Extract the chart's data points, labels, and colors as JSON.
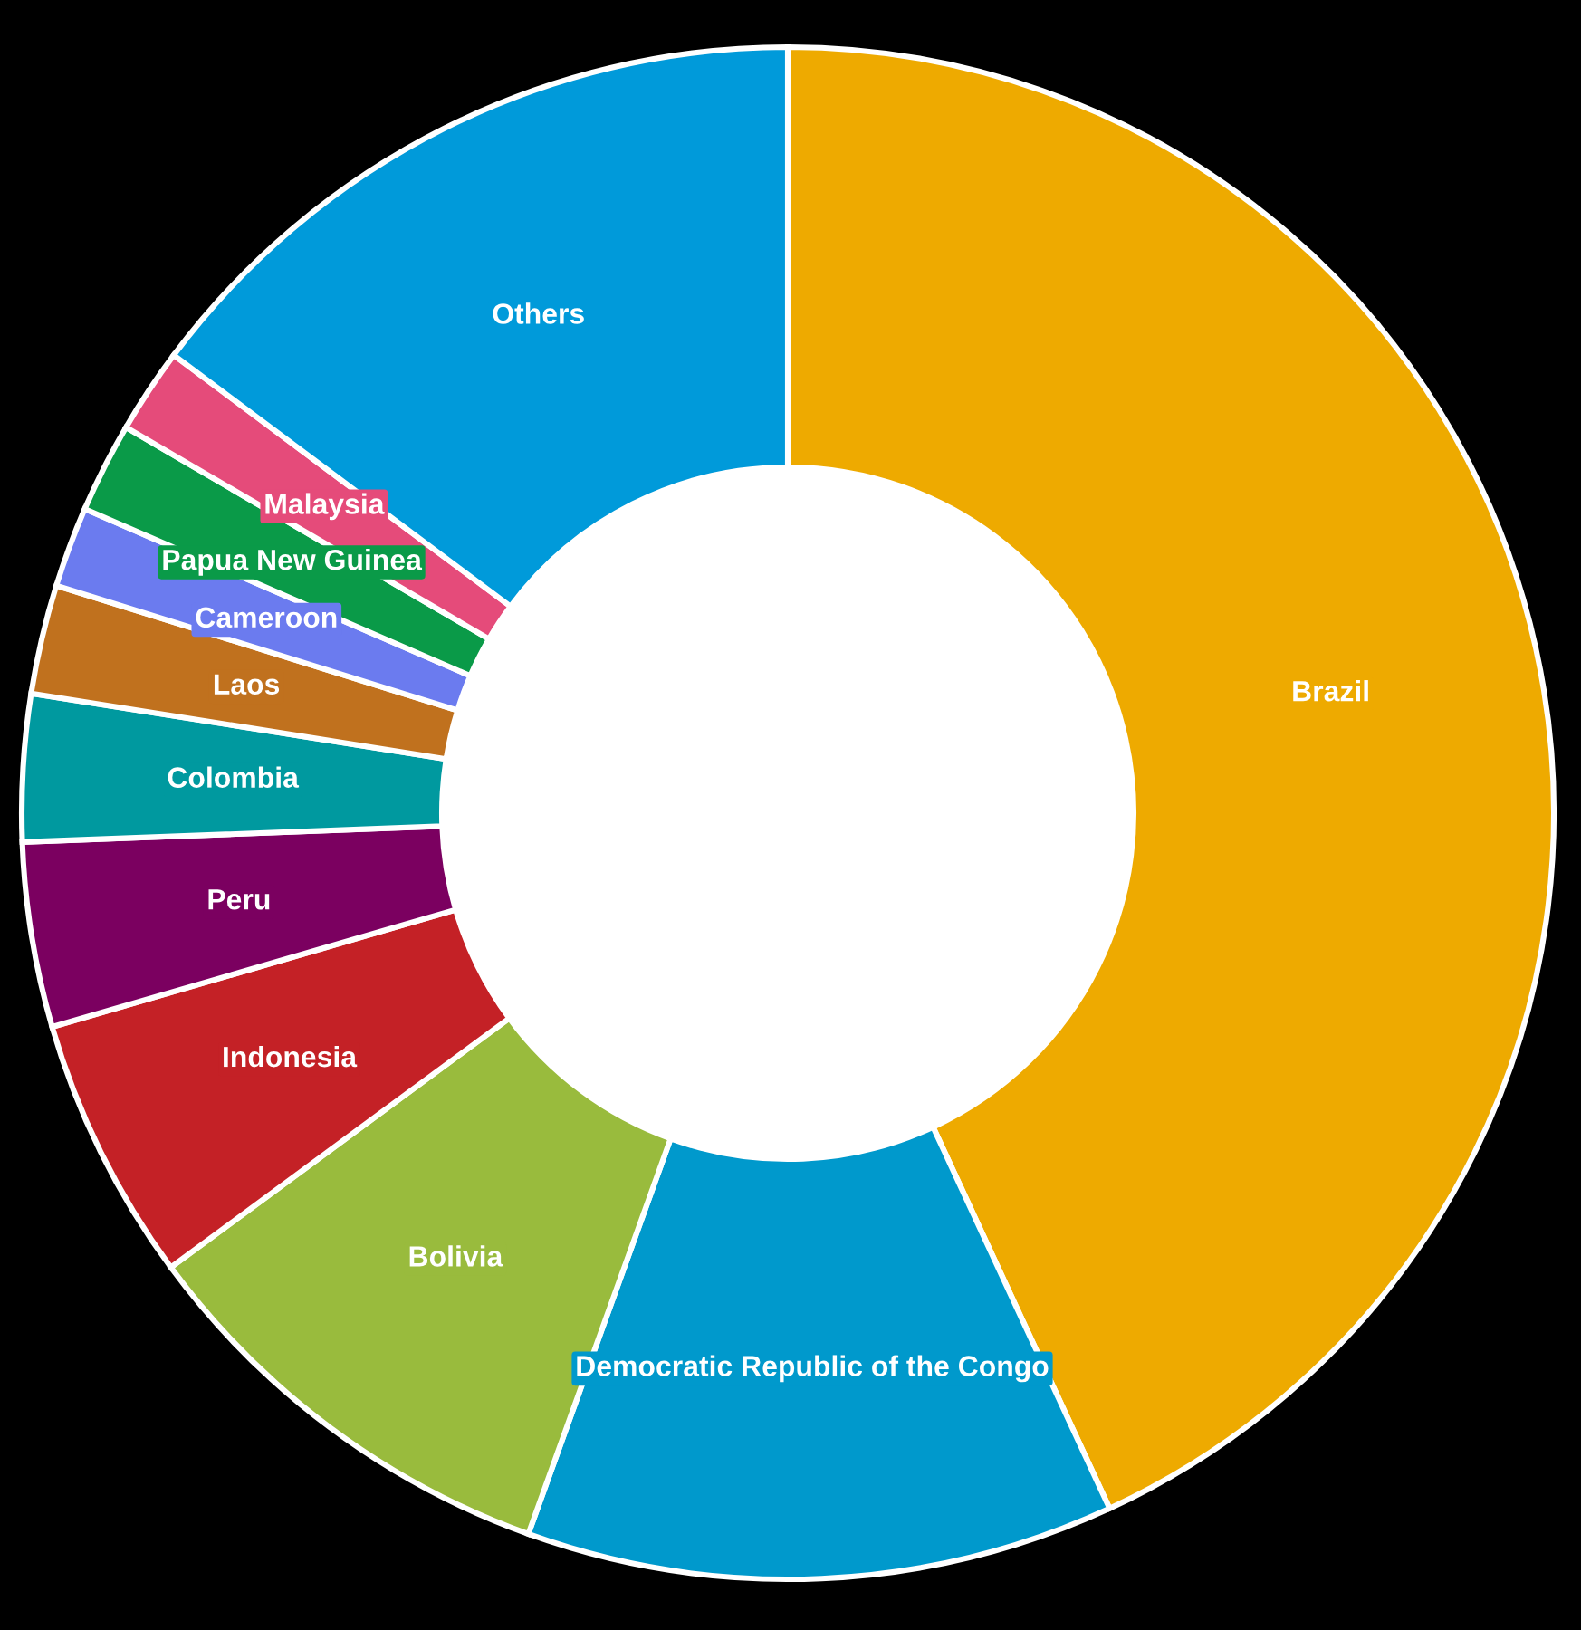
{
  "chart_data": {
    "type": "donut",
    "categories": [
      "Brazil",
      "Democratic Republic of the Congo",
      "Bolivia",
      "Indonesia",
      "Peru",
      "Colombia",
      "Laos",
      "Cameroon",
      "Papua New Guinea",
      "Malaysia",
      "Others"
    ],
    "values": [
      43.1,
      12.4,
      9.4,
      5.6,
      3.9,
      3.1,
      2.3,
      1.7,
      1.9,
      1.8,
      14.8
    ],
    "colors": [
      "#eeaa00",
      "#0099cc",
      "#99bb3d",
      "#c42126",
      "#7b0060",
      "#00999f",
      "#c0711e",
      "#6b7bef",
      "#0a9a48",
      "#e54b7a",
      "#009ada"
    ]
  }
}
